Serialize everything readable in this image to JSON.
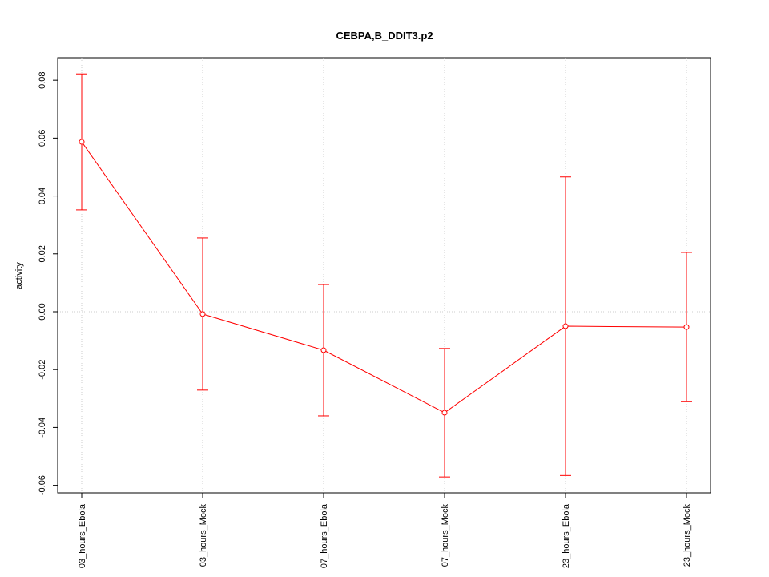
{
  "chart_data": {
    "type": "line",
    "title": "CEBPA,B_DDIT3.p2",
    "y_label": "activity",
    "categories": [
      "03_hours_Ebola",
      "03_hours_Mock",
      "07_hours_Ebola",
      "07_hours_Mock",
      "23_hours_Ebola",
      "23_hours_Mock"
    ],
    "series": [
      {
        "color": "#ff0000",
        "values": [
          0.0587,
          -0.0008,
          -0.0133,
          -0.0349,
          -0.005,
          -0.0053
        ],
        "errors": [
          0.0235,
          0.0263,
          0.0227,
          0.0222,
          0.0516,
          0.0258
        ]
      }
    ],
    "ylim": [
      -0.0626,
      0.0878
    ],
    "yticks": [
      -0.06,
      -0.04,
      -0.02,
      {
        "value": 0,
        "label": "0.00"
      },
      0.02,
      0.04,
      0.06,
      0.08
    ],
    "grid": true
  }
}
